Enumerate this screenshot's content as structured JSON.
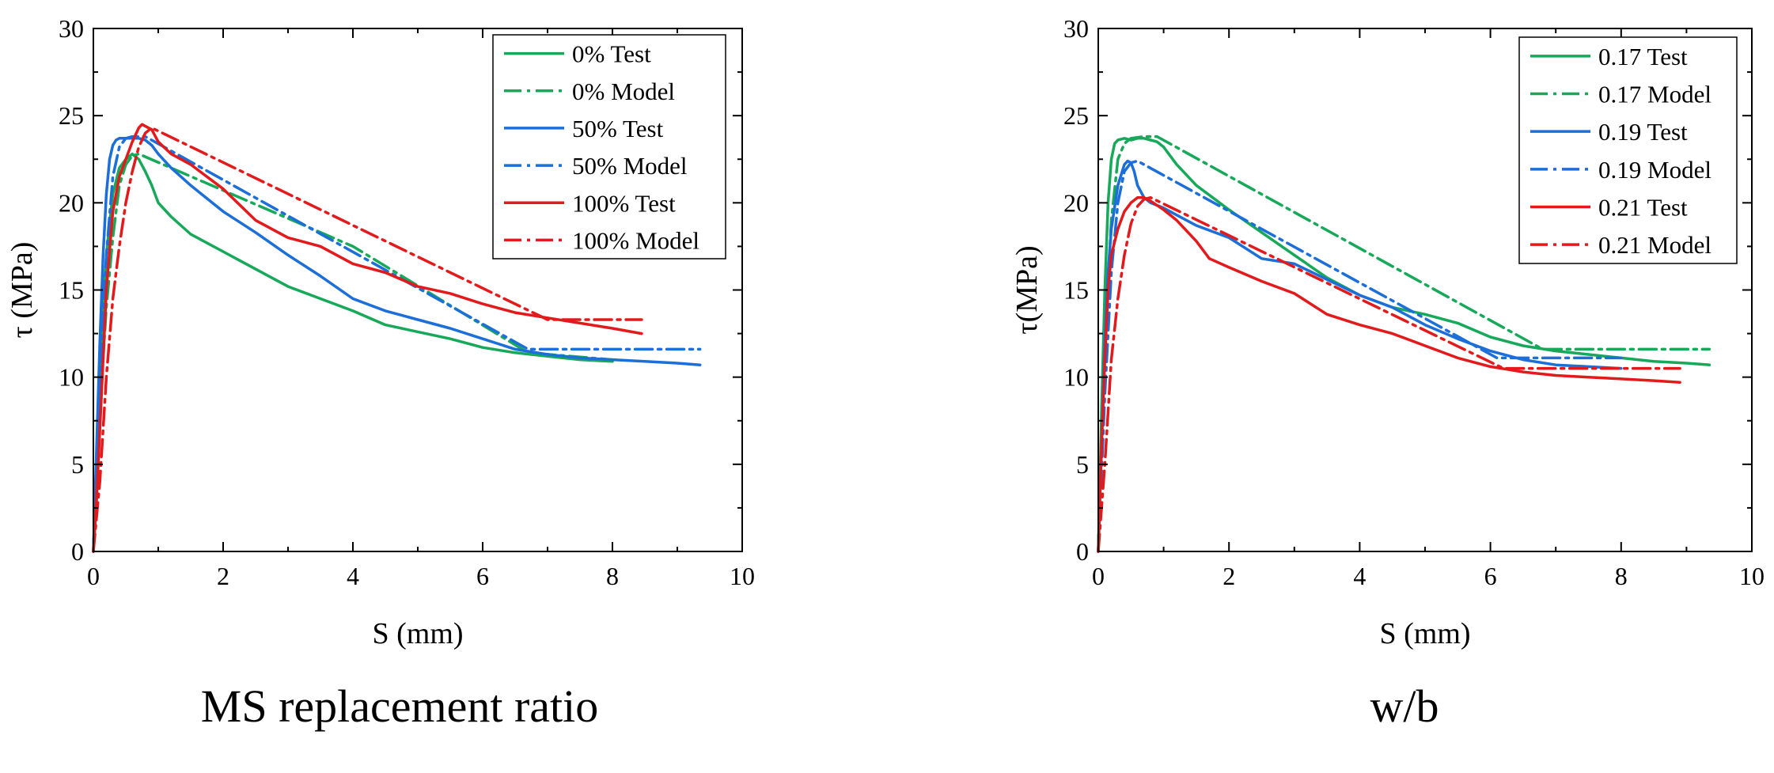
{
  "chart_data": [
    {
      "type": "line",
      "title": "",
      "caption": "MS replacement ratio",
      "xlabel": "S (mm)",
      "ylabel": "τ (MPa)",
      "xlim": [
        0,
        10
      ],
      "ylim": [
        0,
        30
      ],
      "xticks": [
        "0",
        "2",
        "4",
        "6",
        "8",
        "10"
      ],
      "yticks": [
        "0",
        "5",
        "10",
        "15",
        "20",
        "25",
        "30"
      ],
      "grid": false,
      "legend_position": "top-right",
      "series": [
        {
          "name": "0% Test",
          "color": "#17a85a",
          "style": "solid",
          "x": [
            0,
            0.05,
            0.1,
            0.15,
            0.2,
            0.3,
            0.4,
            0.5,
            0.6,
            0.7,
            0.8,
            0.9,
            1.0,
            1.2,
            1.5,
            2.0,
            2.5,
            3.0,
            3.5,
            4.0,
            4.5,
            5.0,
            5.5,
            6.0,
            6.5,
            7.0,
            7.5,
            8.0
          ],
          "y": [
            0,
            5,
            10,
            14,
            17,
            20.5,
            22,
            22.5,
            22.8,
            22.5,
            21.8,
            21,
            20,
            19.2,
            18.2,
            17.2,
            16.2,
            15.2,
            14.5,
            13.8,
            13.0,
            12.6,
            12.2,
            11.7,
            11.4,
            11.2,
            11.0,
            10.9
          ]
        },
        {
          "name": "0% Model",
          "color": "#17a85a",
          "style": "dashdot",
          "x": [
            0,
            0.1,
            0.2,
            0.3,
            0.4,
            0.5,
            0.6,
            0.7,
            4.0,
            6.7,
            8.0
          ],
          "y": [
            0,
            8,
            14,
            18,
            21,
            22.2,
            22.7,
            22.8,
            17.5,
            11.4,
            11.0
          ]
        },
        {
          "name": "50% Test",
          "color": "#1c6ed8",
          "style": "solid",
          "x": [
            0,
            0.05,
            0.1,
            0.15,
            0.2,
            0.25,
            0.3,
            0.35,
            0.4,
            0.5,
            0.6,
            0.7,
            0.8,
            0.9,
            1.0,
            1.2,
            1.5,
            2.0,
            2.5,
            3.0,
            3.5,
            4.0,
            4.5,
            5.0,
            5.5,
            6.0,
            6.5,
            7.0,
            7.5,
            8.0,
            8.5,
            9.0,
            9.35
          ],
          "y": [
            0,
            6,
            12,
            17,
            20.5,
            22.5,
            23.3,
            23.6,
            23.7,
            23.7,
            23.7,
            23.7,
            23.6,
            23.3,
            22.8,
            22.0,
            21.0,
            19.5,
            18.3,
            17.0,
            15.8,
            14.5,
            13.8,
            13.3,
            12.8,
            12.2,
            11.6,
            11.3,
            11.1,
            11.0,
            10.9,
            10.8,
            10.7
          ]
        },
        {
          "name": "50% Model",
          "color": "#1c6ed8",
          "style": "dashdot",
          "x": [
            0,
            0.1,
            0.2,
            0.3,
            0.4,
            0.5,
            0.6,
            0.8,
            6.7,
            9.35
          ],
          "y": [
            0,
            10,
            17,
            21.5,
            23.2,
            23.7,
            23.8,
            23.8,
            11.6,
            11.6
          ]
        },
        {
          "name": "100% Test",
          "color": "#e31a1c",
          "style": "solid",
          "x": [
            0,
            0.05,
            0.1,
            0.15,
            0.2,
            0.3,
            0.4,
            0.5,
            0.6,
            0.7,
            0.75,
            0.8,
            0.9,
            1.0,
            1.2,
            1.5,
            2.0,
            2.5,
            3.0,
            3.5,
            4.0,
            4.5,
            5.0,
            5.5,
            6.0,
            6.5,
            7.0,
            7.5,
            8.0,
            8.45
          ],
          "y": [
            0,
            3,
            7,
            11,
            15,
            19.5,
            21.5,
            22.5,
            23.5,
            24.3,
            24.5,
            24.4,
            24.2,
            23.5,
            22.8,
            22.2,
            20.8,
            19.0,
            18.0,
            17.5,
            16.5,
            16.0,
            15.2,
            14.8,
            14.2,
            13.7,
            13.4,
            13.1,
            12.8,
            12.5
          ]
        },
        {
          "name": "100% Model",
          "color": "#e31a1c",
          "style": "dashdot",
          "x": [
            0,
            0.1,
            0.2,
            0.3,
            0.4,
            0.5,
            0.6,
            0.7,
            0.8,
            0.9,
            7.0,
            8.45
          ],
          "y": [
            0,
            4,
            10,
            14.5,
            17.5,
            20,
            21.8,
            23.2,
            24.0,
            24.3,
            13.3,
            13.3
          ]
        }
      ]
    },
    {
      "type": "line",
      "title": "",
      "caption": "w/b",
      "xlabel": "S (mm)",
      "ylabel": "τ(MPa)",
      "xlim": [
        0,
        10
      ],
      "ylim": [
        0,
        30
      ],
      "xticks": [
        "0",
        "2",
        "4",
        "6",
        "8",
        "10"
      ],
      "yticks": [
        "0",
        "5",
        "10",
        "15",
        "20",
        "25",
        "30"
      ],
      "grid": false,
      "legend_position": "top-right",
      "series": [
        {
          "name": "0.17 Test",
          "color": "#17a85a",
          "style": "solid",
          "x": [
            0,
            0.05,
            0.1,
            0.15,
            0.2,
            0.25,
            0.3,
            0.4,
            0.5,
            0.6,
            0.7,
            0.8,
            0.9,
            1.0,
            1.2,
            1.5,
            2.0,
            2.5,
            3.0,
            3.5,
            4.0,
            4.5,
            5.0,
            5.5,
            6.0,
            6.5,
            7.0,
            7.5,
            8.0,
            8.5,
            9.0,
            9.35
          ],
          "y": [
            0,
            8,
            15,
            20,
            22.5,
            23.4,
            23.6,
            23.7,
            23.6,
            23.7,
            23.7,
            23.6,
            23.5,
            23.2,
            22.2,
            21.0,
            19.6,
            18.3,
            17.0,
            15.7,
            14.7,
            14.0,
            13.6,
            13.1,
            12.3,
            11.8,
            11.5,
            11.3,
            11.1,
            10.9,
            10.8,
            10.7
          ]
        },
        {
          "name": "0.17 Model",
          "color": "#17a85a",
          "style": "dashdot",
          "x": [
            0,
            0.1,
            0.2,
            0.3,
            0.4,
            0.5,
            0.7,
            0.9,
            6.8,
            9.35
          ],
          "y": [
            0,
            12,
            19,
            22.5,
            23.4,
            23.7,
            23.8,
            23.8,
            11.6,
            11.6
          ]
        },
        {
          "name": "0.19 Test",
          "color": "#1c6ed8",
          "style": "solid",
          "x": [
            0,
            0.05,
            0.1,
            0.15,
            0.2,
            0.3,
            0.4,
            0.45,
            0.5,
            0.55,
            0.6,
            0.7,
            0.8,
            1.0,
            1.2,
            1.5,
            2.0,
            2.5,
            3.0,
            3.5,
            4.0,
            4.5,
            5.0,
            5.5,
            6.0,
            6.5,
            7.0,
            7.5,
            8.0
          ],
          "y": [
            0,
            6,
            12,
            16,
            18.5,
            21.0,
            22.2,
            22.4,
            22.3,
            21.8,
            21.0,
            20.3,
            20.0,
            19.7,
            19.3,
            18.7,
            18.0,
            16.8,
            16.5,
            15.6,
            14.7,
            14.0,
            13.0,
            12.2,
            11.5,
            11.0,
            10.7,
            10.6,
            10.5
          ]
        },
        {
          "name": "0.19 Model",
          "color": "#1c6ed8",
          "style": "dashdot",
          "x": [
            0,
            0.1,
            0.2,
            0.3,
            0.4,
            0.5,
            0.6,
            6.1,
            8.0
          ],
          "y": [
            0,
            9,
            16,
            20,
            21.8,
            22.3,
            22.4,
            11.1,
            11.1
          ]
        },
        {
          "name": "0.21 Test",
          "color": "#e31a1c",
          "style": "solid",
          "x": [
            0,
            0.05,
            0.1,
            0.15,
            0.2,
            0.3,
            0.4,
            0.5,
            0.6,
            0.7,
            0.8,
            1.0,
            1.2,
            1.5,
            1.7,
            2.0,
            2.5,
            3.0,
            3.5,
            4.0,
            4.5,
            5.0,
            5.5,
            6.0,
            6.5,
            7.0,
            7.5,
            8.0,
            8.5,
            8.9
          ],
          "y": [
            0,
            6,
            11,
            15,
            17.0,
            18.5,
            19.5,
            20.0,
            20.3,
            20.3,
            20.1,
            19.6,
            19.0,
            17.8,
            16.8,
            16.3,
            15.5,
            14.8,
            13.6,
            13.0,
            12.5,
            11.8,
            11.1,
            10.6,
            10.3,
            10.1,
            10.0,
            9.9,
            9.8,
            9.7
          ]
        },
        {
          "name": "0.21 Model",
          "color": "#e31a1c",
          "style": "dashdot",
          "x": [
            0,
            0.1,
            0.2,
            0.3,
            0.4,
            0.5,
            0.6,
            0.7,
            0.8,
            6.2,
            8.9
          ],
          "y": [
            0,
            5,
            11,
            14.5,
            17,
            18.8,
            19.8,
            20.2,
            20.3,
            10.5,
            10.5
          ]
        }
      ]
    }
  ]
}
